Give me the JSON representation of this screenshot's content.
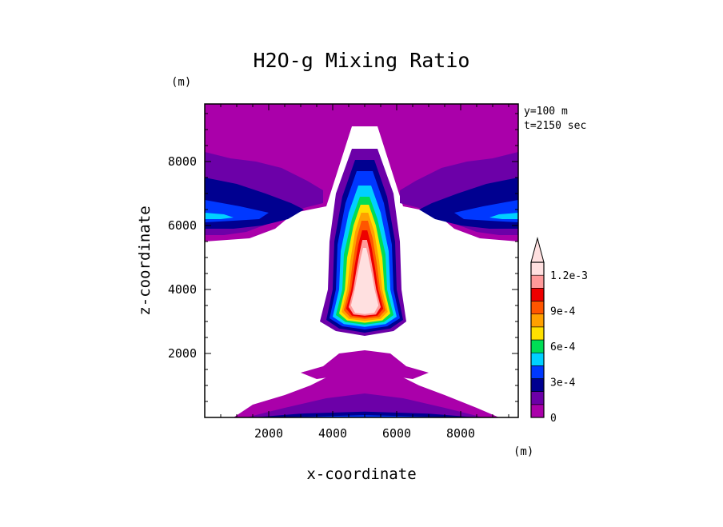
{
  "chart_data": {
    "type": "heatmap",
    "title": "H2O-g Mixing Ratio",
    "xlabel": "x-coordinate",
    "ylabel": "z-coordinate",
    "x_unit": "(m)",
    "y_unit": "(m)",
    "xlim": [
      0,
      9800
    ],
    "ylim": [
      0,
      9800
    ],
    "xticks": [
      "2000",
      "4000",
      "6000",
      "8000"
    ],
    "xtick_values": [
      2000,
      4000,
      6000,
      8000
    ],
    "yticks": [
      "2000",
      "4000",
      "6000",
      "8000"
    ],
    "ytick_values": [
      2000,
      4000,
      6000,
      8000
    ],
    "annotations": [
      "y=100 m",
      "t=2150 sec"
    ],
    "colorbar": {
      "levels": [
        0,
        0.00015,
        0.0003,
        0.00045,
        0.0006,
        0.00075,
        0.0009,
        0.00105,
        0.0012,
        0.00135
      ],
      "tick_labels": [
        "0",
        "3e-4",
        "6e-4",
        "9e-4",
        "1.2e-3"
      ],
      "tick_values": [
        0,
        0.0003,
        0.0006,
        0.0009,
        0.0012
      ],
      "colors": [
        "#aa00aa",
        "#6c00a8",
        "#000090",
        "#0038ff",
        "#00d0ff",
        "#00dd55",
        "#ffe000",
        "#ffa000",
        "#ff5500",
        "#ee0000",
        "#ff9a9a",
        "#ffe0e0"
      ],
      "extend": "max"
    },
    "regions": [
      {
        "name": "top-layer",
        "level": 0,
        "points": [
          [
            0,
            9800
          ],
          [
            9800,
            9800
          ],
          [
            9800,
            5500
          ],
          [
            8600,
            5600
          ],
          [
            7800,
            5900
          ],
          [
            7200,
            6400
          ],
          [
            6200,
            6600
          ],
          [
            5400,
            9100
          ],
          [
            4600,
            9100
          ],
          [
            3800,
            6600
          ],
          [
            2800,
            6400
          ],
          [
            2200,
            5900
          ],
          [
            1400,
            5600
          ],
          [
            0,
            5500
          ]
        ]
      },
      {
        "name": "left-band-1",
        "level": 1,
        "points": [
          [
            0,
            8300
          ],
          [
            800,
            8100
          ],
          [
            1600,
            8000
          ],
          [
            2400,
            7800
          ],
          [
            3200,
            7400
          ],
          [
            3700,
            7100
          ],
          [
            3700,
            6700
          ],
          [
            2900,
            6500
          ],
          [
            2100,
            6100
          ],
          [
            1300,
            5800
          ],
          [
            600,
            5700
          ],
          [
            0,
            5700
          ]
        ]
      },
      {
        "name": "left-band-2",
        "level": 2,
        "points": [
          [
            0,
            7500
          ],
          [
            1000,
            7300
          ],
          [
            1900,
            7000
          ],
          [
            2700,
            6700
          ],
          [
            3100,
            6500
          ],
          [
            2600,
            6200
          ],
          [
            1800,
            6000
          ],
          [
            900,
            5900
          ],
          [
            0,
            5900
          ]
        ]
      },
      {
        "name": "left-band-3",
        "level": 3,
        "points": [
          [
            0,
            6800
          ],
          [
            1100,
            6600
          ],
          [
            2000,
            6400
          ],
          [
            1700,
            6200
          ],
          [
            900,
            6150
          ],
          [
            0,
            6100
          ]
        ]
      },
      {
        "name": "left-band-4",
        "level": 4,
        "points": [
          [
            0,
            6400
          ],
          [
            600,
            6350
          ],
          [
            900,
            6250
          ],
          [
            500,
            6200
          ],
          [
            0,
            6200
          ]
        ]
      },
      {
        "name": "right-band-1",
        "level": 1,
        "points": [
          [
            9800,
            8300
          ],
          [
            9000,
            8100
          ],
          [
            8200,
            8000
          ],
          [
            7400,
            7800
          ],
          [
            6600,
            7400
          ],
          [
            6100,
            7100
          ],
          [
            6100,
            6700
          ],
          [
            6900,
            6500
          ],
          [
            7700,
            6100
          ],
          [
            8500,
            5800
          ],
          [
            9200,
            5700
          ],
          [
            9800,
            5700
          ]
        ]
      },
      {
        "name": "right-band-2",
        "level": 2,
        "points": [
          [
            9800,
            7500
          ],
          [
            8800,
            7300
          ],
          [
            7900,
            7000
          ],
          [
            7100,
            6700
          ],
          [
            6700,
            6500
          ],
          [
            7200,
            6200
          ],
          [
            8000,
            6000
          ],
          [
            8900,
            5900
          ],
          [
            9800,
            5900
          ]
        ]
      },
      {
        "name": "right-band-3",
        "level": 3,
        "points": [
          [
            9800,
            6800
          ],
          [
            8700,
            6600
          ],
          [
            7800,
            6400
          ],
          [
            8100,
            6200
          ],
          [
            8900,
            6150
          ],
          [
            9800,
            6100
          ]
        ]
      },
      {
        "name": "right-band-4",
        "level": 4,
        "points": [
          [
            9800,
            6400
          ],
          [
            9200,
            6350
          ],
          [
            8900,
            6250
          ],
          [
            9300,
            6200
          ],
          [
            9800,
            6200
          ]
        ]
      },
      {
        "name": "plume-1",
        "level": 1,
        "points": [
          [
            4600,
            8400
          ],
          [
            5400,
            8400
          ],
          [
            5900,
            7000
          ],
          [
            6100,
            5500
          ],
          [
            6150,
            4000
          ],
          [
            6300,
            3000
          ],
          [
            5900,
            2700
          ],
          [
            5000,
            2550
          ],
          [
            4100,
            2700
          ],
          [
            3600,
            3000
          ],
          [
            3850,
            4000
          ],
          [
            3900,
            5500
          ],
          [
            4100,
            7000
          ]
        ]
      },
      {
        "name": "plume-2",
        "level": 2,
        "points": [
          [
            4700,
            8050
          ],
          [
            5300,
            8050
          ],
          [
            5700,
            6900
          ],
          [
            5950,
            5500
          ],
          [
            6000,
            4000
          ],
          [
            6200,
            3050
          ],
          [
            5800,
            2780
          ],
          [
            5000,
            2650
          ],
          [
            4200,
            2780
          ],
          [
            3800,
            3050
          ],
          [
            4000,
            4000
          ],
          [
            4050,
            5500
          ],
          [
            4300,
            6900
          ]
        ]
      },
      {
        "name": "plume-3",
        "level": 3,
        "points": [
          [
            4750,
            7700
          ],
          [
            5250,
            7700
          ],
          [
            5600,
            6700
          ],
          [
            5850,
            5400
          ],
          [
            5900,
            4000
          ],
          [
            6100,
            3100
          ],
          [
            5700,
            2850
          ],
          [
            5000,
            2750
          ],
          [
            4300,
            2850
          ],
          [
            3900,
            3100
          ],
          [
            4100,
            4000
          ],
          [
            4150,
            5400
          ],
          [
            4400,
            6700
          ]
        ]
      },
      {
        "name": "plume-4",
        "level": 4,
        "points": [
          [
            4800,
            7250
          ],
          [
            5200,
            7250
          ],
          [
            5500,
            6400
          ],
          [
            5750,
            5200
          ],
          [
            5800,
            4000
          ],
          [
            6000,
            3150
          ],
          [
            5650,
            2920
          ],
          [
            5000,
            2830
          ],
          [
            4350,
            2920
          ],
          [
            4000,
            3150
          ],
          [
            4200,
            4000
          ],
          [
            4250,
            5200
          ],
          [
            4500,
            6400
          ]
        ]
      },
      {
        "name": "plume-5",
        "level": 5,
        "points": [
          [
            4850,
            6900
          ],
          [
            5150,
            6900
          ],
          [
            5400,
            6200
          ],
          [
            5650,
            5100
          ],
          [
            5700,
            4000
          ],
          [
            5900,
            3200
          ],
          [
            5600,
            2980
          ],
          [
            5000,
            2900
          ],
          [
            4400,
            2980
          ],
          [
            4100,
            3200
          ],
          [
            4300,
            4000
          ],
          [
            4350,
            5100
          ],
          [
            4600,
            6200
          ]
        ]
      },
      {
        "name": "plume-6",
        "level": 6,
        "points": [
          [
            4870,
            6650
          ],
          [
            5130,
            6650
          ],
          [
            5350,
            6000
          ],
          [
            5550,
            5000
          ],
          [
            5620,
            4000
          ],
          [
            5800,
            3250
          ],
          [
            5550,
            3030
          ],
          [
            5000,
            2960
          ],
          [
            4450,
            3030
          ],
          [
            4200,
            3250
          ],
          [
            4380,
            4000
          ],
          [
            4450,
            5000
          ],
          [
            4650,
            6000
          ]
        ]
      },
      {
        "name": "plume-7",
        "level": 7,
        "points": [
          [
            4890,
            6400
          ],
          [
            5110,
            6400
          ],
          [
            5300,
            5800
          ],
          [
            5450,
            4900
          ],
          [
            5550,
            4000
          ],
          [
            5720,
            3300
          ],
          [
            5500,
            3080
          ],
          [
            5000,
            3020
          ],
          [
            4500,
            3080
          ],
          [
            4280,
            3300
          ],
          [
            4450,
            4000
          ],
          [
            4550,
            4900
          ],
          [
            4700,
            5800
          ]
        ]
      },
      {
        "name": "plume-8",
        "level": 8,
        "points": [
          [
            4900,
            6150
          ],
          [
            5100,
            6150
          ],
          [
            5250,
            5600
          ],
          [
            5380,
            4800
          ],
          [
            5480,
            4000
          ],
          [
            5650,
            3350
          ],
          [
            5450,
            3130
          ],
          [
            5000,
            3080
          ],
          [
            4550,
            3130
          ],
          [
            4350,
            3350
          ],
          [
            4520,
            4000
          ],
          [
            4620,
            4800
          ],
          [
            4750,
            5600
          ]
        ]
      },
      {
        "name": "plume-9",
        "level": 9,
        "points": [
          [
            4920,
            5850
          ],
          [
            5080,
            5850
          ],
          [
            5200,
            5400
          ],
          [
            5320,
            4700
          ],
          [
            5420,
            4000
          ],
          [
            5580,
            3400
          ],
          [
            5400,
            3180
          ],
          [
            5000,
            3130
          ],
          [
            4600,
            3180
          ],
          [
            4420,
            3400
          ],
          [
            4580,
            4000
          ],
          [
            4680,
            4700
          ],
          [
            4800,
            5400
          ]
        ]
      },
      {
        "name": "plume-10",
        "level": 10,
        "points": [
          [
            4930,
            5550
          ],
          [
            5070,
            5550
          ],
          [
            5150,
            5200
          ],
          [
            5260,
            4600
          ],
          [
            5360,
            4000
          ],
          [
            5500,
            3450
          ],
          [
            5350,
            3220
          ],
          [
            5000,
            3180
          ],
          [
            4650,
            3220
          ],
          [
            4500,
            3450
          ],
          [
            4640,
            4000
          ],
          [
            4740,
            4600
          ],
          [
            4850,
            5200
          ]
        ]
      },
      {
        "name": "plume-11",
        "level": 11,
        "points": [
          [
            4950,
            5300
          ],
          [
            5050,
            5300
          ],
          [
            5120,
            5000
          ],
          [
            5220,
            4500
          ],
          [
            5310,
            4000
          ],
          [
            5430,
            3500
          ],
          [
            5300,
            3270
          ],
          [
            5000,
            3230
          ],
          [
            4700,
            3270
          ],
          [
            4570,
            3500
          ],
          [
            4690,
            4000
          ],
          [
            4780,
            4500
          ],
          [
            4880,
            5000
          ]
        ]
      },
      {
        "name": "low-cloud-1",
        "level": 0,
        "points": [
          [
            3000,
            1400
          ],
          [
            3700,
            1600
          ],
          [
            4200,
            2000
          ],
          [
            5000,
            2100
          ],
          [
            5800,
            2000
          ],
          [
            6300,
            1600
          ],
          [
            7000,
            1400
          ],
          [
            6500,
            1200
          ],
          [
            5800,
            1300
          ],
          [
            5300,
            1000
          ],
          [
            4700,
            1000
          ],
          [
            4200,
            1300
          ],
          [
            3500,
            1200
          ]
        ]
      },
      {
        "name": "ground-0",
        "level": 0,
        "points": [
          [
            900,
            0
          ],
          [
            1500,
            400
          ],
          [
            2500,
            700
          ],
          [
            3300,
            1000
          ],
          [
            4100,
            1400
          ],
          [
            5000,
            1600
          ],
          [
            5900,
            1400
          ],
          [
            6700,
            1000
          ],
          [
            7500,
            700
          ],
          [
            8500,
            300
          ],
          [
            9200,
            0
          ]
        ]
      },
      {
        "name": "ground-1",
        "level": 1,
        "points": [
          [
            1300,
            0
          ],
          [
            2500,
            300
          ],
          [
            3800,
            600
          ],
          [
            5000,
            750
          ],
          [
            6200,
            600
          ],
          [
            7500,
            300
          ],
          [
            8700,
            0
          ]
        ]
      },
      {
        "name": "ground-2",
        "level": 2,
        "points": [
          [
            1500,
            0
          ],
          [
            3000,
            120
          ],
          [
            5000,
            180
          ],
          [
            7000,
            120
          ],
          [
            8500,
            0
          ]
        ]
      },
      {
        "name": "ground-3",
        "level": 3,
        "points": [
          [
            2000,
            0
          ],
          [
            5000,
            70
          ],
          [
            8000,
            0
          ]
        ]
      }
    ]
  }
}
